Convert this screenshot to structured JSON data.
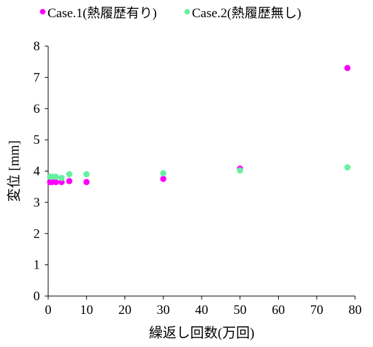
{
  "chart_data": {
    "type": "scatter",
    "title": "",
    "xlabel": "繰返し回数(万回)",
    "ylabel": "変位 [mm]",
    "xlim": [
      0,
      80
    ],
    "ylim": [
      0,
      8
    ],
    "x_ticks": [
      0,
      10,
      20,
      30,
      40,
      50,
      60,
      70,
      80
    ],
    "y_ticks": [
      0,
      1,
      2,
      3,
      4,
      5,
      6,
      7,
      8
    ],
    "grid": false,
    "legend_position": "top",
    "series": [
      {
        "name": "Case.1(熱履歴有り)",
        "color": "#ff00ff",
        "points": [
          {
            "x": 0.5,
            "y": 3.65
          },
          {
            "x": 1,
            "y": 3.65
          },
          {
            "x": 2,
            "y": 3.65
          },
          {
            "x": 3.5,
            "y": 3.65
          },
          {
            "x": 5.5,
            "y": 3.68
          },
          {
            "x": 10,
            "y": 3.65
          },
          {
            "x": 30,
            "y": 3.75
          },
          {
            "x": 50,
            "y": 4.08
          },
          {
            "x": 78,
            "y": 7.3
          }
        ]
      },
      {
        "name": "Case.2(熱履歴無し)",
        "color": "#66f0a0",
        "points": [
          {
            "x": 0.5,
            "y": 3.82
          },
          {
            "x": 1,
            "y": 3.82
          },
          {
            "x": 2,
            "y": 3.82
          },
          {
            "x": 3.5,
            "y": 3.78
          },
          {
            "x": 5.5,
            "y": 3.9
          },
          {
            "x": 10,
            "y": 3.9
          },
          {
            "x": 30,
            "y": 3.93
          },
          {
            "x": 50,
            "y": 4.02
          },
          {
            "x": 78,
            "y": 4.12
          }
        ]
      }
    ]
  }
}
